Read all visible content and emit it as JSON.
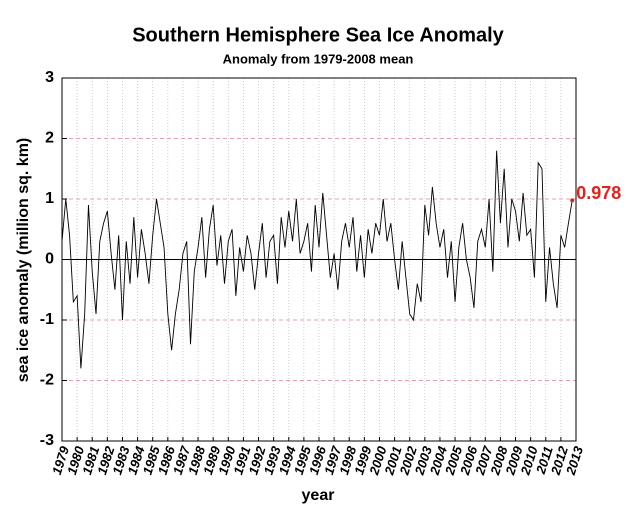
{
  "chart_data": {
    "type": "line",
    "title": "Southern Hemisphere Sea Ice Anomaly",
    "subtitle": "Anomaly from 1979-2008 mean",
    "x_label": "year",
    "y_label": "sea ice anomaly (million sq. km)",
    "color": "#000000",
    "annotation_color": "#e8201c",
    "grid_color": "#e8a0a8",
    "zero_line": true,
    "grid": true,
    "xlim": [
      1979,
      2013
    ],
    "ylim": [
      -3,
      3
    ],
    "yticks": [
      -3,
      -2,
      -1,
      0,
      1,
      2,
      3
    ],
    "xticks": [
      1979,
      1980,
      1981,
      1982,
      1983,
      1984,
      1985,
      1986,
      1987,
      1988,
      1989,
      1990,
      1991,
      1992,
      1993,
      1994,
      1995,
      1996,
      1997,
      1998,
      1999,
      2000,
      2001,
      2002,
      2003,
      2004,
      2005,
      2006,
      2007,
      2008,
      2009,
      2010,
      2011,
      2012,
      2013
    ],
    "x": [
      1979,
      1979.25,
      1979.5,
      1979.75,
      1980,
      1980.25,
      1980.5,
      1980.75,
      1981,
      1981.25,
      1981.5,
      1981.75,
      1982,
      1982.25,
      1982.5,
      1982.75,
      1983,
      1983.25,
      1983.5,
      1983.75,
      1984,
      1984.25,
      1984.5,
      1984.75,
      1985,
      1985.25,
      1985.5,
      1985.75,
      1986,
      1986.25,
      1986.5,
      1986.75,
      1987,
      1987.25,
      1987.5,
      1987.75,
      1988,
      1988.25,
      1988.5,
      1988.75,
      1989,
      1989.25,
      1989.5,
      1989.75,
      1990,
      1990.25,
      1990.5,
      1990.75,
      1991,
      1991.25,
      1991.5,
      1991.75,
      1992,
      1992.25,
      1992.5,
      1992.75,
      1993,
      1993.25,
      1993.5,
      1993.75,
      1994,
      1994.25,
      1994.5,
      1994.75,
      1995,
      1995.25,
      1995.5,
      1995.75,
      1996,
      1996.25,
      1996.5,
      1996.75,
      1997,
      1997.25,
      1997.5,
      1997.75,
      1998,
      1998.25,
      1998.5,
      1998.75,
      1999,
      1999.25,
      1999.5,
      1999.75,
      2000,
      2000.25,
      2000.5,
      2000.75,
      2001,
      2001.25,
      2001.5,
      2001.75,
      2002,
      2002.25,
      2002.5,
      2002.75,
      2003,
      2003.25,
      2003.5,
      2003.75,
      2004,
      2004.25,
      2004.5,
      2004.75,
      2005,
      2005.25,
      2005.5,
      2005.75,
      2006,
      2006.25,
      2006.5,
      2006.75,
      2007,
      2007.25,
      2007.5,
      2007.75,
      2008,
      2008.25,
      2008.5,
      2008.75,
      2009,
      2009.25,
      2009.5,
      2009.75,
      2010,
      2010.25,
      2010.5,
      2010.75,
      2011,
      2011.25,
      2011.5,
      2011.75,
      2012,
      2012.25,
      2012.5,
      2012.75
    ],
    "values": [
      0.3,
      1.0,
      0.4,
      -0.7,
      -0.6,
      -1.8,
      -0.9,
      0.9,
      -0.2,
      -0.9,
      0.3,
      0.6,
      0.8,
      0.1,
      -0.5,
      0.4,
      -1.0,
      0.3,
      -0.4,
      0.7,
      -0.3,
      0.5,
      0.1,
      -0.4,
      0.4,
      1.0,
      0.6,
      0.2,
      -0.9,
      -1.5,
      -0.9,
      -0.5,
      0.1,
      0.3,
      -1.4,
      -0.2,
      0.2,
      0.7,
      -0.3,
      0.5,
      0.9,
      -0.1,
      0.4,
      -0.4,
      0.3,
      0.5,
      -0.6,
      0.2,
      -0.2,
      0.4,
      0.1,
      -0.5,
      0.1,
      0.6,
      -0.3,
      0.3,
      0.4,
      -0.4,
      0.7,
      0.2,
      0.8,
      0.3,
      1.0,
      0.1,
      0.3,
      0.6,
      -0.2,
      0.9,
      0.2,
      1.1,
      0.4,
      -0.3,
      0.1,
      -0.5,
      0.3,
      0.6,
      0.2,
      0.7,
      -0.2,
      0.4,
      -0.3,
      0.5,
      0.1,
      0.6,
      0.4,
      1.0,
      0.3,
      0.6,
      0.0,
      -0.5,
      0.3,
      -0.3,
      -0.9,
      -1.0,
      -0.4,
      -0.7,
      0.9,
      0.4,
      1.2,
      0.6,
      0.2,
      0.5,
      -0.3,
      0.3,
      -0.7,
      0.2,
      0.6,
      0.0,
      -0.3,
      -0.8,
      0.3,
      0.5,
      0.2,
      1.0,
      -0.2,
      1.8,
      0.6,
      1.5,
      0.2,
      1.0,
      0.8,
      0.3,
      1.1,
      0.4,
      0.5,
      -0.3,
      1.6,
      1.5,
      -0.7,
      0.2,
      -0.4,
      -0.8,
      0.4,
      0.2,
      0.6,
      0.978
    ]
  }
}
